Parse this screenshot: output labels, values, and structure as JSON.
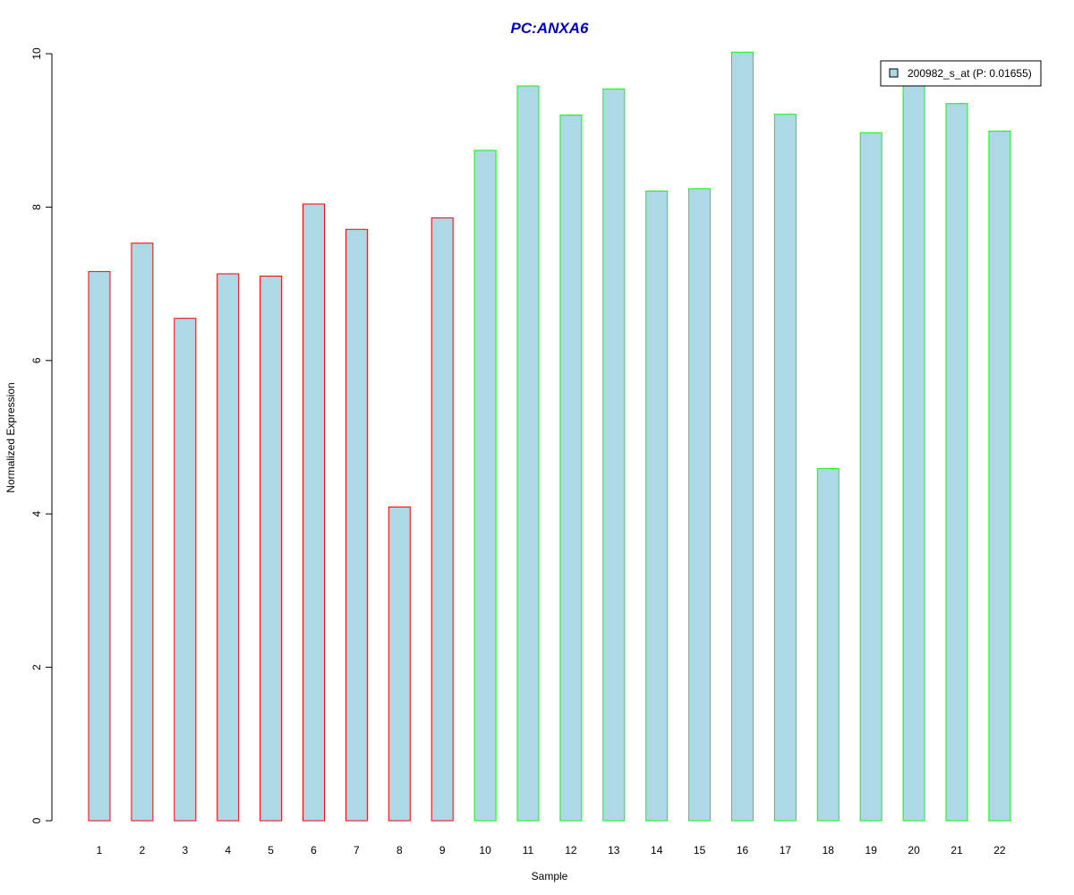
{
  "chart_data": {
    "type": "bar",
    "title": "PC:ANXA6",
    "xlabel": "Sample",
    "ylabel": "Normalized Expression",
    "ylim": [
      0,
      10
    ],
    "yticks": [
      "0",
      "2",
      "4",
      "6",
      "8",
      "10"
    ],
    "categories": [
      "1",
      "2",
      "3",
      "4",
      "5",
      "6",
      "7",
      "8",
      "9",
      "10",
      "11",
      "12",
      "13",
      "14",
      "15",
      "16",
      "17",
      "18",
      "19",
      "20",
      "21",
      "22"
    ],
    "series": [
      {
        "name": "200982_s_at (P: 0.01655)",
        "values": [
          7.16,
          7.53,
          6.55,
          7.13,
          7.1,
          8.04,
          7.71,
          4.09,
          7.86,
          8.74,
          9.58,
          9.2,
          9.54,
          8.21,
          8.24,
          10.02,
          9.21,
          4.59,
          8.97,
          9.65,
          9.35,
          8.99
        ]
      }
    ],
    "bar_fill": "#add8e6",
    "group_border_colors": [
      "#ff0000",
      "#ff0000",
      "#ff0000",
      "#ff0000",
      "#ff0000",
      "#ff0000",
      "#ff0000",
      "#ff0000",
      "#ff0000",
      "#00ff00",
      "#00ff00",
      "#00ff00",
      "#00ff00",
      "#00ff00",
      "#00ff00",
      "#00ff00",
      "#00ff00",
      "#00ff00",
      "#00ff00",
      "#00ff00",
      "#00ff00",
      "#00ff00"
    ],
    "title_color": "#0000cc",
    "grid": false,
    "legend_position": "top-right"
  }
}
